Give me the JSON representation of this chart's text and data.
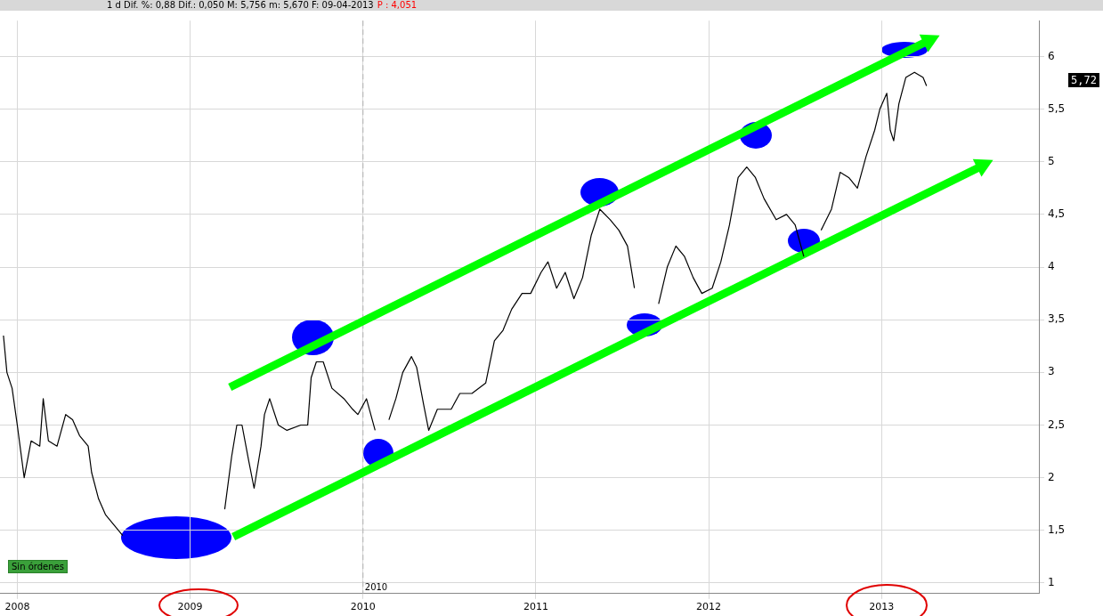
{
  "chart_data": {
    "type": "line",
    "title": "1 d Dif. %: 0,88 Dif.: 0,050 M: 5,756 m: 5,670 F: 09-04-2013",
    "subtitle": "P : 4,051",
    "xlim": [
      2007.9,
      2013.91
    ],
    "ylim": [
      0.9,
      6.34
    ],
    "xticks": [
      2008,
      2009,
      2010,
      2011,
      2012,
      2013
    ],
    "yticks": [
      1,
      {
        "value": 1.5,
        "label": "1,5"
      },
      2,
      {
        "value": 2.5,
        "label": "2,5"
      },
      3,
      {
        "value": 3.5,
        "label": "3,5"
      },
      4,
      {
        "value": 4.5,
        "label": "4,5"
      },
      5,
      {
        "value": 5.5,
        "label": "5,5"
      },
      6
    ],
    "grid": true,
    "legend": false,
    "line_style": "solid",
    "ref_lines": [
      {
        "axis": "x",
        "value": 2010,
        "label": "2010",
        "color": "#b0b0b0",
        "line_style": "dashed"
      }
    ],
    "annotations": [
      "Sin órdenes",
      "5,72"
    ],
    "series": [
      {
        "color": "#000000",
        "x": [
          2007.92,
          2007.94,
          2007.97,
          2008.0,
          2008.04,
          2008.08,
          2008.13,
          2008.15,
          2008.18,
          2008.23,
          2008.28,
          2008.32,
          2008.36,
          2008.41,
          2008.43,
          2008.47,
          2008.51,
          2008.56,
          2008.61,
          2008.66,
          2008.72,
          2008.92,
          2009.07,
          2009.15,
          2009.2,
          2009.24,
          2009.27,
          2009.3,
          2009.34,
          2009.37,
          2009.41,
          2009.43,
          2009.46,
          2009.51,
          2009.56,
          2009.64,
          2009.68,
          2009.7,
          2009.73,
          2009.77,
          2009.82,
          2009.89,
          2009.94,
          2009.97,
          2010.02,
          2010.07,
          2010.1,
          2010.15,
          2010.19,
          2010.23,
          2010.28,
          2010.31,
          2010.35,
          2010.38,
          2010.43,
          2010.51,
          2010.56,
          2010.63,
          2010.71,
          2010.76,
          2010.81,
          2010.86,
          2010.92,
          2010.97,
          2011.03,
          2011.07,
          2011.12,
          2011.17,
          2011.22,
          2011.27,
          2011.32,
          2011.37,
          2011.43,
          2011.48,
          2011.53,
          2011.57,
          2011.61,
          2011.66,
          2011.71,
          2011.76,
          2011.81,
          2011.86,
          2011.91,
          2011.96,
          2012.02,
          2012.07,
          2012.12,
          2012.17,
          2012.22,
          2012.27,
          2012.32,
          2012.39,
          2012.45,
          2012.5,
          2012.55,
          2012.6,
          2012.65,
          2012.71,
          2012.76,
          2012.81,
          2012.86,
          2012.91,
          2012.96,
          2012.99,
          2013.03,
          2013.05,
          2013.07,
          2013.1,
          2013.14,
          2013.19,
          2013.24,
          2013.26
        ],
        "values": [
          3.35,
          3.0,
          2.85,
          2.5,
          2.0,
          2.35,
          2.3,
          2.75,
          2.35,
          2.3,
          2.6,
          2.55,
          2.4,
          2.3,
          2.05,
          1.8,
          1.65,
          1.55,
          1.45,
          null,
          null,
          null,
          null,
          null,
          1.7,
          2.2,
          2.5,
          2.5,
          2.15,
          1.9,
          2.3,
          2.6,
          2.75,
          2.5,
          2.45,
          2.5,
          2.5,
          2.95,
          3.1,
          3.1,
          2.85,
          2.75,
          2.65,
          2.6,
          2.75,
          2.45,
          null,
          2.55,
          2.75,
          3.0,
          3.15,
          3.05,
          2.7,
          2.45,
          2.65,
          2.65,
          2.8,
          2.8,
          2.9,
          3.3,
          3.4,
          3.6,
          3.75,
          3.75,
          3.95,
          4.05,
          3.8,
          3.95,
          3.7,
          3.9,
          4.3,
          4.55,
          4.45,
          4.35,
          4.2,
          3.8,
          null,
          null,
          3.65,
          4.0,
          4.2,
          4.1,
          3.9,
          3.75,
          3.8,
          4.05,
          4.4,
          4.85,
          4.95,
          4.85,
          4.65,
          4.45,
          4.5,
          4.4,
          4.1,
          null,
          4.35,
          4.55,
          4.9,
          4.85,
          4.75,
          5.05,
          5.3,
          5.5,
          5.65,
          5.3,
          5.2,
          5.55,
          5.8,
          5.85,
          5.8,
          5.72
        ]
      },
      {
        "type": "line",
        "color": "#00ff00",
        "x": [
          2009.23,
          2013.27
        ],
        "values": [
          2.86,
          6.15
        ]
      },
      {
        "type": "line",
        "color": "#00ff00",
        "x": [
          2009.25,
          2013.58
        ],
        "values": [
          1.44,
          4.96
        ]
      }
    ]
  }
}
